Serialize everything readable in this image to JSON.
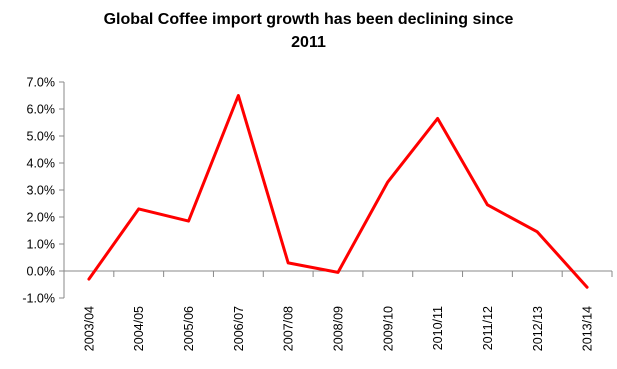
{
  "chart_data": {
    "type": "line",
    "title_lines": [
      "Global Coffee import growth has been declining since",
      "2011"
    ],
    "categories": [
      "2003/04",
      "2004/05",
      "2005/06",
      "2006/07",
      "2007/08",
      "2008/09",
      "2009/10",
      "2010/11",
      "2011/12",
      "2012/13",
      "2013/14"
    ],
    "series": [
      {
        "values": [
          -0.3,
          2.3,
          1.85,
          6.5,
          0.3,
          -0.05,
          3.3,
          5.65,
          2.45,
          1.45,
          -0.6
        ],
        "color": "#ff0000"
      }
    ],
    "ylim": [
      -1.0,
      7.0
    ],
    "y_ticks": [
      "-1.0%",
      "0.0%",
      "1.0%",
      "2.0%",
      "3.0%",
      "4.0%",
      "5.0%",
      "6.0%",
      "7.0%"
    ],
    "grid": false,
    "legend": "none"
  }
}
